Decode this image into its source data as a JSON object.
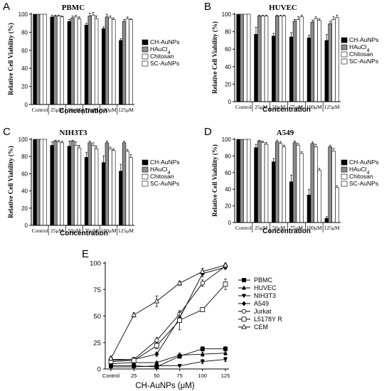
{
  "chart_data": [
    {
      "type": "bar",
      "panel_letter": "A",
      "title": "PBMC",
      "ylabel": "Relative Cell Viability (%)",
      "xlabel": "Concentration",
      "ylim": [
        0,
        100
      ],
      "yticks": [
        "0",
        "20",
        "40",
        "60",
        "80",
        "100"
      ],
      "categories": [
        "Control",
        "25μM",
        "50μM",
        "75μM",
        "100μM",
        "125μM"
      ],
      "legend_position": "right",
      "series": [
        {
          "name": "CH-AuNPs",
          "color": "#000000",
          "values": [
            100,
            97,
            92,
            88,
            84,
            71
          ],
          "errors": [
            0,
            2,
            2,
            2,
            2,
            2
          ]
        },
        {
          "name": "HAuCl4",
          "color": "#8c8c8c",
          "values": [
            100,
            98,
            96,
            98,
            97,
            92
          ],
          "errors": [
            0,
            1,
            2,
            3,
            3,
            2
          ]
        },
        {
          "name": "Chitosan",
          "color": "#ffffff",
          "values": [
            100,
            98,
            97,
            99,
            96,
            95
          ],
          "errors": [
            0,
            1,
            2,
            3,
            2,
            2
          ]
        },
        {
          "name": "SC-AuNPs",
          "color": "#ffffff",
          "values": [
            100,
            97,
            95,
            95,
            94,
            94
          ],
          "errors": [
            0,
            1,
            2,
            3,
            2,
            1
          ]
        }
      ]
    },
    {
      "type": "bar",
      "panel_letter": "B",
      "title": "HUVEC",
      "ylabel": "Relative Cell Viability (%)",
      "xlabel": "Concentration",
      "ylim": [
        0,
        100
      ],
      "yticks": [
        "0",
        "20",
        "40",
        "60",
        "80",
        "100"
      ],
      "categories": [
        "Control",
        "25μM",
        "50μM",
        "75μM",
        "100μM",
        "125μM"
      ],
      "legend_position": "right",
      "series": [
        {
          "name": "CH-AuNPs",
          "color": "#000000",
          "values": [
            100,
            77,
            75,
            74,
            73,
            70
          ],
          "errors": [
            0,
            8,
            3,
            5,
            3,
            7
          ]
        },
        {
          "name": "HAuCl4",
          "color": "#8c8c8c",
          "values": [
            100,
            98,
            98,
            92,
            91,
            89
          ],
          "errors": [
            0,
            1,
            1,
            2,
            2,
            3
          ]
        },
        {
          "name": "Chitosan",
          "color": "#ffffff",
          "values": [
            100,
            98,
            98,
            94,
            95,
            94
          ],
          "errors": [
            0,
            1,
            1,
            3,
            2,
            3
          ]
        },
        {
          "name": "SC-AuNPs",
          "color": "#ffffff",
          "values": [
            100,
            98,
            98,
            97,
            93,
            96
          ],
          "errors": [
            0,
            1,
            1,
            2,
            2,
            3
          ]
        }
      ]
    },
    {
      "type": "bar",
      "panel_letter": "C",
      "title": "NIH3T3",
      "ylabel": "Relative Cell Viability (%)",
      "xlabel": "Concentration",
      "ylim": [
        0,
        100
      ],
      "yticks": [
        "0",
        "20",
        "40",
        "60",
        "80",
        "100"
      ],
      "categories": [
        "Control",
        "25μM",
        "50μM",
        "75μM",
        "100μM",
        "125μM"
      ],
      "legend_position": "right",
      "series": [
        {
          "name": "CH-AuNPs",
          "color": "#000000",
          "values": [
            100,
            93,
            92,
            79,
            73,
            63
          ],
          "errors": [
            0,
            4,
            6,
            6,
            8,
            8
          ]
        },
        {
          "name": "HAuCl4",
          "color": "#8c8c8c",
          "values": [
            100,
            98,
            98,
            96,
            96,
            96
          ],
          "errors": [
            0,
            1,
            1,
            2,
            2,
            2
          ]
        },
        {
          "name": "Chitosan",
          "color": "#ffffff",
          "values": [
            100,
            97,
            93,
            93,
            89,
            86
          ],
          "errors": [
            0,
            2,
            4,
            3,
            2,
            2
          ]
        },
        {
          "name": "SC-AuNPs",
          "color": "#ffffff",
          "values": [
            100,
            96,
            90,
            89,
            87,
            79
          ],
          "errors": [
            0,
            2,
            3,
            3,
            2,
            3
          ]
        }
      ]
    },
    {
      "type": "bar",
      "panel_letter": "D",
      "title": "A549",
      "ylabel": "Relative Cell Viability (%)",
      "xlabel": "Concentration",
      "ylim": [
        0,
        100
      ],
      "yticks": [
        "0",
        "20",
        "40",
        "60",
        "80",
        "100"
      ],
      "categories": [
        "Control",
        "25μM",
        "50μM",
        "75μM",
        "100μM",
        "125μM"
      ],
      "legend_position": "right",
      "series": [
        {
          "name": "CH-AuNPs",
          "color": "#000000",
          "values": [
            100,
            90,
            73,
            49,
            33,
            5
          ],
          "errors": [
            0,
            4,
            4,
            8,
            7,
            2
          ]
        },
        {
          "name": "HAuCl4",
          "color": "#8c8c8c",
          "values": [
            100,
            98,
            97,
            96,
            95,
            91
          ],
          "errors": [
            0,
            1,
            2,
            2,
            2,
            2
          ]
        },
        {
          "name": "Chitosan",
          "color": "#ffffff",
          "values": [
            100,
            96,
            95,
            93,
            91,
            86
          ],
          "errors": [
            0,
            2,
            2,
            2,
            3,
            3
          ]
        },
        {
          "name": "SC-AuNPs",
          "color": "#ffffff",
          "values": [
            100,
            94,
            91,
            83,
            63,
            42
          ],
          "errors": [
            0,
            2,
            2,
            2,
            2,
            2
          ]
        }
      ]
    },
    {
      "type": "line",
      "panel_letter": "E",
      "title": "",
      "ylabel": "",
      "xlabel": "CH-AuNPs (μM)",
      "ylim": [
        0,
        100
      ],
      "yticks": [
        "0",
        "25",
        "50",
        "75",
        "100"
      ],
      "categories": [
        "Control",
        "25",
        "50",
        "75",
        "100",
        "125"
      ],
      "legend_position": "right",
      "series": [
        {
          "name": "PBMC",
          "marker": "square",
          "values": [
            3,
            3,
            2,
            12,
            19,
            19
          ],
          "errors": [
            1,
            1,
            1,
            2,
            2,
            2
          ]
        },
        {
          "name": "HUVEC",
          "marker": "triangle-up",
          "values": [
            5,
            6,
            6,
            13,
            14,
            15
          ],
          "errors": [
            1,
            1,
            1,
            2,
            2,
            2
          ]
        },
        {
          "name": "NIH3T3",
          "marker": "triangle-down",
          "values": [
            2,
            2,
            3,
            3,
            7,
            9
          ],
          "errors": [
            1,
            1,
            1,
            1,
            2,
            2
          ]
        },
        {
          "name": "A549",
          "marker": "diamond",
          "values": [
            8,
            9,
            14,
            48,
            90,
            96
          ],
          "errors": [
            1,
            1,
            2,
            3,
            3,
            2
          ]
        },
        {
          "name": "Jurkat",
          "marker": "circle-open",
          "values": [
            9,
            9,
            27,
            52,
            81,
            97
          ],
          "errors": [
            2,
            2,
            3,
            3,
            3,
            2
          ]
        },
        {
          "name": "L5178Y R",
          "marker": "square-open",
          "values": [
            7,
            8,
            22,
            46,
            56,
            80
          ],
          "errors": [
            2,
            2,
            3,
            9,
            2,
            5
          ]
        },
        {
          "name": "CEM",
          "marker": "triangle-open",
          "values": [
            10,
            51,
            64,
            81,
            92,
            98
          ],
          "errors": [
            2,
            2,
            5,
            2,
            3,
            2
          ]
        }
      ]
    }
  ]
}
